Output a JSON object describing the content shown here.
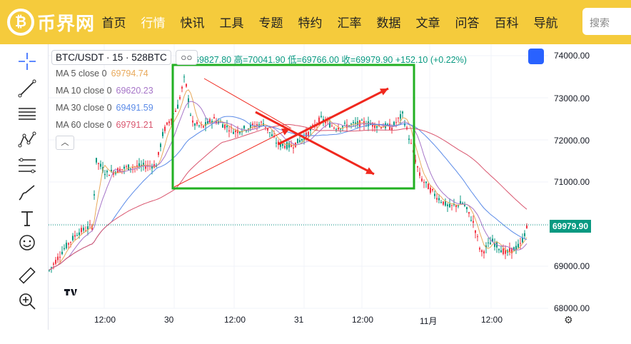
{
  "header": {
    "logo_text": "币界网",
    "nav": [
      "首页",
      "行情",
      "快讯",
      "工具",
      "专题",
      "特约",
      "汇率",
      "数据",
      "文章",
      "问答",
      "百科",
      "导航"
    ],
    "active_index": 1,
    "search_placeholder": "搜索"
  },
  "chart": {
    "symbol": "BTC/USDT · 15 · 528BTC",
    "ohlc": "69827.80 高=70041.90 低=69766.00 收=69979.90 +152.10 (+0.22%)",
    "ma": [
      {
        "label": "MA 5 close 0",
        "value": "69794.74",
        "color": "#e8a95b"
      },
      {
        "label": "MA 10 close 0",
        "value": "69620.23",
        "color": "#a675c8"
      },
      {
        "label": "MA 30 close 0",
        "value": "69491.59",
        "color": "#5b8be8"
      },
      {
        "label": "MA 60 close 0",
        "value": "69791.21",
        "color": "#d9556e"
      }
    ],
    "current_price": "69979.90",
    "price_ticks": [
      "74000.00",
      "73000.00",
      "72000.00",
      "71000.00",
      "70000.00",
      "69000.00",
      "68000.00"
    ],
    "time_ticks": [
      "12:00",
      "30",
      "12:00",
      "31",
      "12:00",
      "11月",
      "12:00"
    ]
  },
  "colors": {
    "header_bg": "#f5cb3c",
    "up": "#089981",
    "down": "#f23645",
    "annotation_box": "#22b022",
    "arrow": "#f0281e"
  }
}
